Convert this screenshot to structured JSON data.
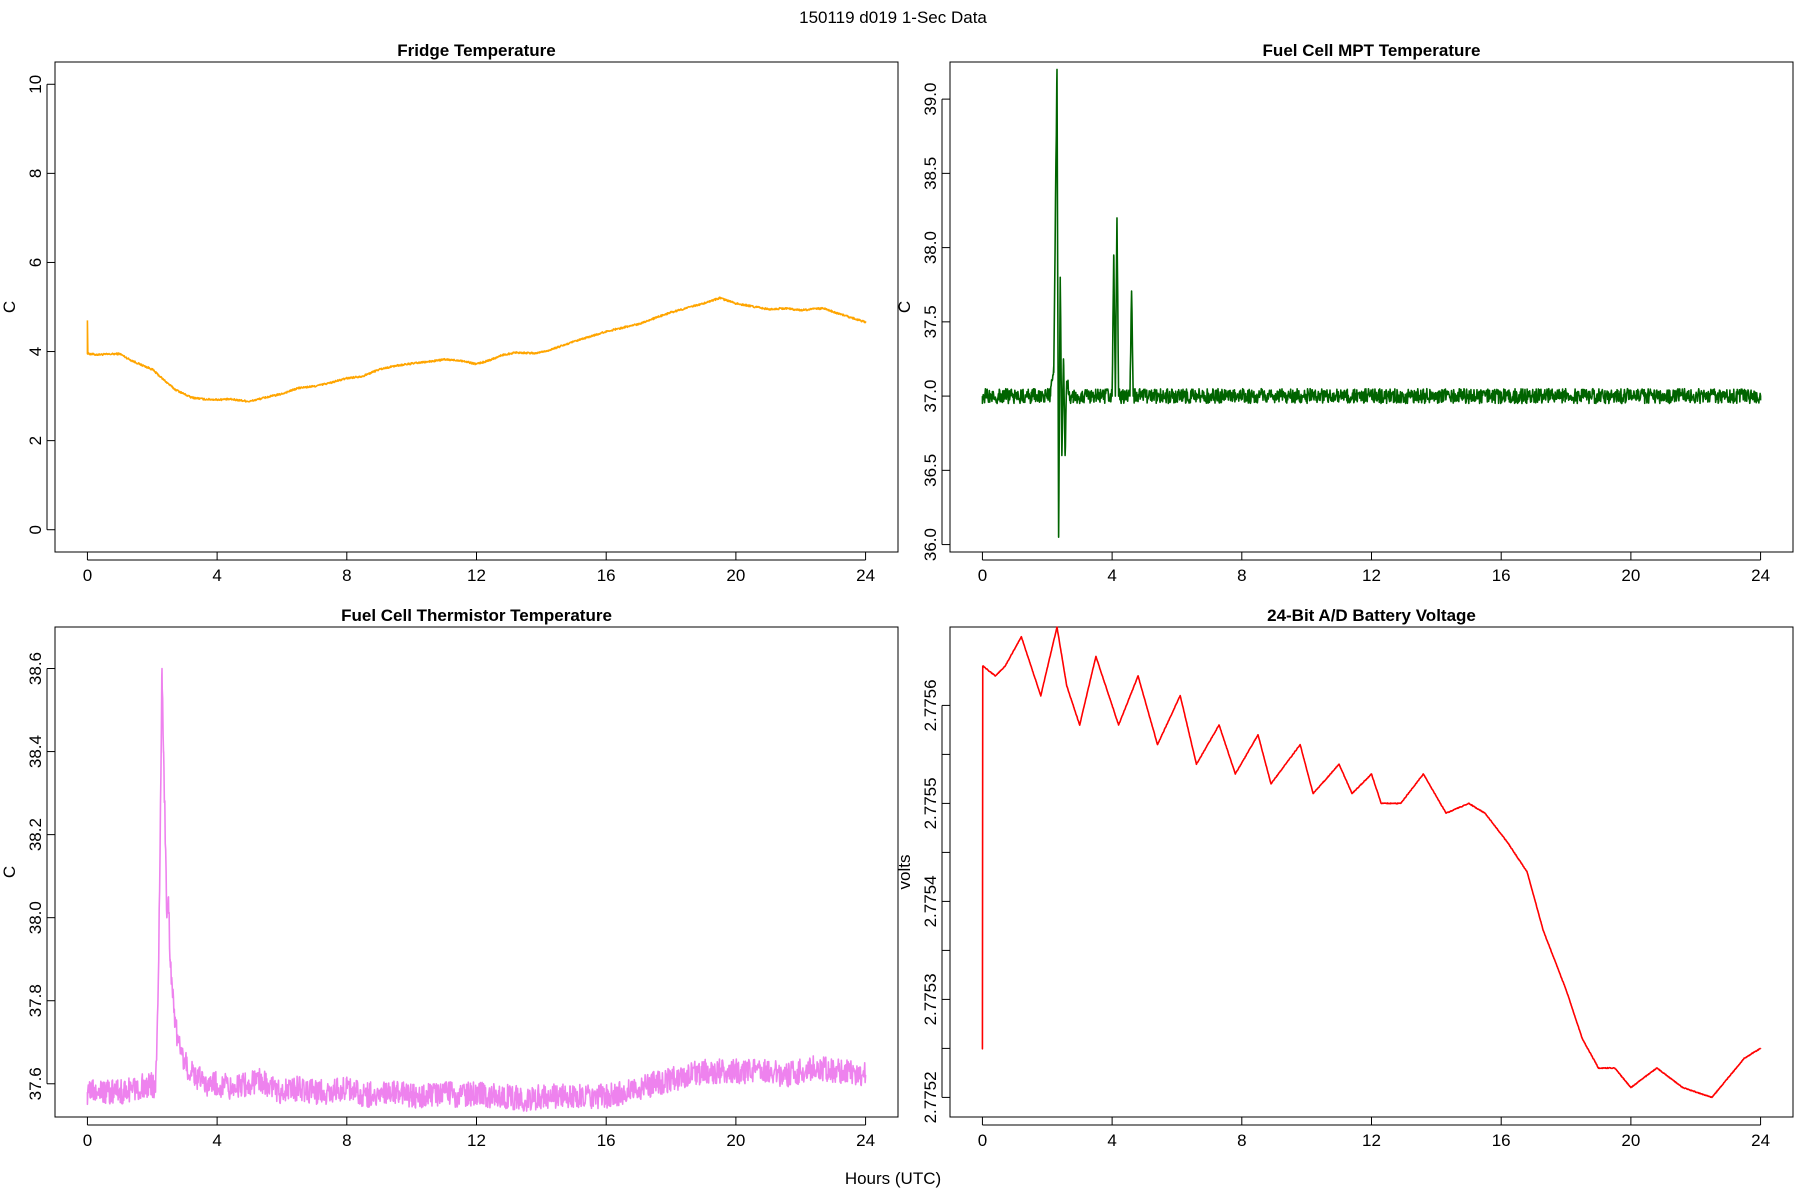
{
  "figure": {
    "title": "150119   d019   1-Sec Data",
    "xlabel": "Hours (UTC)"
  },
  "chart_data": [
    {
      "type": "line",
      "title": "Fridge Temperature",
      "ylabel": "C",
      "xlabel": "",
      "xlim": [
        -1,
        25
      ],
      "ylim": [
        -0.5,
        10.5
      ],
      "xticks": [
        0,
        4,
        8,
        12,
        16,
        20,
        24
      ],
      "xtick_labels": [
        "0",
        "4",
        "8",
        "12",
        "16",
        "20",
        "24"
      ],
      "yticks": [
        0,
        2,
        4,
        6,
        8,
        10
      ],
      "ytick_labels": [
        "0",
        "2",
        "4",
        "6",
        "8",
        "10"
      ],
      "color": "#FFA500",
      "noise": 0.02,
      "series": [
        {
          "name": "Fridge Temperature",
          "x": [
            0,
            0,
            0.02,
            0.3,
            1.0,
            1.3,
            1.6,
            2.0,
            2.3,
            2.7,
            3.2,
            3.6,
            4.0,
            4.4,
            5.0,
            5.5,
            6.0,
            6.5,
            7.0,
            7.5,
            8.0,
            8.5,
            9.0,
            9.5,
            10.0,
            10.5,
            11.0,
            11.5,
            12.0,
            12.3,
            12.8,
            13.2,
            13.8,
            14.2,
            15.0,
            16.0,
            17.0,
            18.0,
            19.0,
            19.5,
            20.0,
            21.0,
            21.5,
            22.0,
            22.7,
            23.3,
            24.0
          ],
          "y": [
            4.7,
            3.95,
            3.95,
            3.93,
            3.95,
            3.82,
            3.72,
            3.6,
            3.4,
            3.15,
            2.97,
            2.93,
            2.92,
            2.93,
            2.88,
            2.97,
            3.05,
            3.18,
            3.22,
            3.3,
            3.4,
            3.45,
            3.6,
            3.68,
            3.73,
            3.77,
            3.82,
            3.8,
            3.72,
            3.78,
            3.92,
            3.98,
            3.96,
            4.02,
            4.22,
            4.45,
            4.62,
            4.88,
            5.08,
            5.2,
            5.08,
            4.95,
            4.97,
            4.93,
            4.97,
            4.82,
            4.66
          ]
        }
      ]
    },
    {
      "type": "line",
      "title": "Fuel Cell MPT Temperature",
      "ylabel": "C",
      "xlabel": "",
      "xlim": [
        -1,
        25
      ],
      "ylim": [
        35.95,
        39.25
      ],
      "xticks": [
        0,
        4,
        8,
        12,
        16,
        20,
        24
      ],
      "xtick_labels": [
        "0",
        "4",
        "8",
        "12",
        "16",
        "20",
        "24"
      ],
      "yticks": [
        36.0,
        36.5,
        37.0,
        37.5,
        38.0,
        38.5,
        39.0
      ],
      "ytick_labels": [
        "36.0",
        "36.5",
        "37.0",
        "37.5",
        "38.0",
        "38.5",
        "39.0"
      ],
      "color": "#006400",
      "noise": 0.05,
      "series": [
        {
          "name": "Fuel Cell MPT Temperature",
          "x": [
            0,
            2.1,
            2.2,
            2.3,
            2.35,
            2.4,
            2.45,
            2.5,
            2.55,
            2.6,
            2.7,
            2.8,
            4.0,
            4.05,
            4.1,
            4.15,
            4.2,
            4.5,
            4.55,
            4.6,
            4.65,
            4.7,
            24.0
          ],
          "y": [
            37.0,
            37.0,
            37.2,
            39.2,
            36.05,
            37.8,
            36.6,
            37.25,
            36.6,
            37.1,
            37.0,
            37.0,
            37.0,
            37.95,
            37.0,
            38.2,
            37.0,
            37.0,
            37.0,
            37.7,
            37.0,
            37.0,
            37.0
          ]
        }
      ]
    },
    {
      "type": "line",
      "title": "Fuel Cell Thermistor Temperature",
      "ylabel": "C",
      "xlabel": "",
      "xlim": [
        -1,
        25
      ],
      "ylim": [
        37.52,
        38.7
      ],
      "xticks": [
        0,
        4,
        8,
        12,
        16,
        20,
        24
      ],
      "xtick_labels": [
        "0",
        "4",
        "8",
        "12",
        "16",
        "20",
        "24"
      ],
      "yticks": [
        37.6,
        37.8,
        38.0,
        38.2,
        38.4,
        38.6
      ],
      "ytick_labels": [
        "37.6",
        "37.8",
        "38.0",
        "38.2",
        "38.4",
        "38.6"
      ],
      "color": "#EE82EE",
      "noise": 0.03,
      "series": [
        {
          "name": "Fuel Cell Thermistor Temperature",
          "x": [
            0,
            0.5,
            1.0,
            1.5,
            2.0,
            2.1,
            2.2,
            2.3,
            2.35,
            2.45,
            2.5,
            2.55,
            2.6,
            2.7,
            2.8,
            3.0,
            3.3,
            3.7,
            4.0,
            4.5,
            5.0,
            5.3,
            5.7,
            6.0,
            6.5,
            7.0,
            7.5,
            8.0,
            8.5,
            9.0,
            9.5,
            10.0,
            10.5,
            11.0,
            11.5,
            12.0,
            12.5,
            13.0,
            13.5,
            14.0,
            14.5,
            15.0,
            15.5,
            16.0,
            16.5,
            17.0,
            17.5,
            18.0,
            18.5,
            19.0,
            19.5,
            20.0,
            20.5,
            21.0,
            21.5,
            22.0,
            22.5,
            23.0,
            23.5,
            24.0
          ],
          "y": [
            37.58,
            37.58,
            37.58,
            37.59,
            37.6,
            37.58,
            37.9,
            38.6,
            38.4,
            38.0,
            38.05,
            37.9,
            37.85,
            37.75,
            37.7,
            37.65,
            37.62,
            37.6,
            37.6,
            37.59,
            37.6,
            37.61,
            37.59,
            37.58,
            37.59,
            37.58,
            37.58,
            37.59,
            37.57,
            37.58,
            37.58,
            37.57,
            37.57,
            37.58,
            37.57,
            37.58,
            37.57,
            37.57,
            37.56,
            37.57,
            37.57,
            37.57,
            37.57,
            37.57,
            37.58,
            37.59,
            37.6,
            37.61,
            37.62,
            37.63,
            37.63,
            37.63,
            37.63,
            37.63,
            37.62,
            37.63,
            37.64,
            37.63,
            37.63,
            37.62
          ]
        }
      ]
    },
    {
      "type": "line",
      "title": "24-Bit A/D Battery Voltage",
      "ylabel": "volts",
      "xlabel": "",
      "xlim": [
        -1,
        25
      ],
      "ylim": [
        2.77518,
        2.77568
      ],
      "xticks": [
        0,
        4,
        8,
        12,
        16,
        20,
        24
      ],
      "xtick_labels": [
        "0",
        "4",
        "8",
        "12",
        "16",
        "20",
        "24"
      ],
      "yticks": [
        2.7752,
        2.77525,
        2.7753,
        2.77535,
        2.7754,
        2.77545,
        2.7755,
        2.77555,
        2.7756
      ],
      "ytick_labels": [
        "2.7752",
        "",
        "2.7753",
        "",
        "2.7754",
        "",
        "2.7755",
        "",
        "2.7756"
      ],
      "color": "#FF0000",
      "noise": 4e-07,
      "series": [
        {
          "name": "24-Bit A/D Battery Voltage",
          "x": [
            0,
            0.01,
            0.02,
            0.4,
            0.7,
            1.2,
            1.8,
            2.3,
            2.6,
            3.0,
            3.5,
            4.2,
            4.8,
            5.4,
            6.1,
            6.6,
            7.3,
            7.8,
            8.5,
            8.9,
            9.8,
            10.2,
            11.0,
            11.4,
            12.0,
            12.3,
            12.9,
            13.6,
            14.3,
            15.0,
            15.5,
            16.2,
            16.8,
            17.3,
            18.0,
            18.5,
            19.0,
            19.5,
            20.0,
            20.8,
            21.6,
            22.5,
            23.0,
            23.5,
            24.0
          ]
        }
      ]
    }
  ]
}
